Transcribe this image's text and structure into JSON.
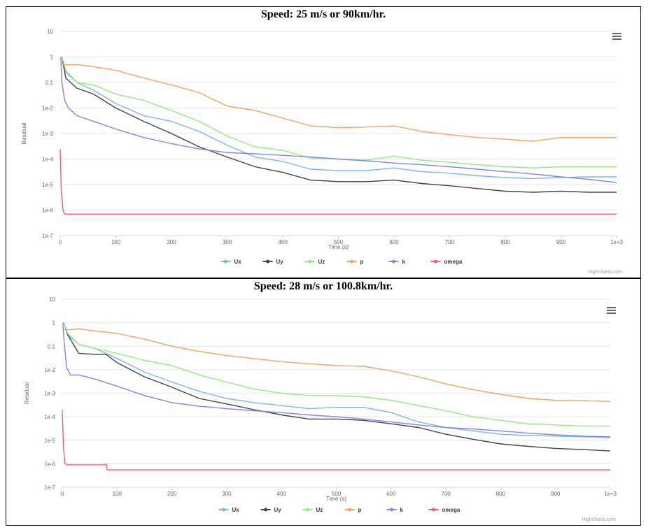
{
  "panels": [
    {
      "title": "Speed: 25 m/s or 90km/hr."
    },
    {
      "title": "Speed: 28 m/s or 100.8km/hr."
    }
  ],
  "credit": "Highcharts.com",
  "chart_data": [
    {
      "type": "line",
      "title": "Speed: 25 m/s or 90km/hr.",
      "xlabel": "Time (s)",
      "ylabel": "Residual",
      "xlim": [
        0,
        1000
      ],
      "ylim_log10": [
        -7,
        1
      ],
      "y_scale": "log",
      "x_ticks": [
        "0",
        "100",
        "200",
        "300",
        "400",
        "500",
        "600",
        "700",
        "800",
        "900",
        "1e+3"
      ],
      "y_ticks": [
        "10",
        "1",
        "0.1",
        "1e-2",
        "1e-3",
        "1e-4",
        "1e-5",
        "1e-6",
        "1e-7"
      ],
      "grid": true,
      "legend": "bottom-center",
      "series": [
        {
          "name": "Ux",
          "color": "#7cb5ec",
          "x": [
            3,
            10,
            30,
            60,
            100,
            150,
            200,
            250,
            300,
            350,
            400,
            450,
            500,
            550,
            600,
            650,
            700,
            750,
            800,
            850,
            900,
            950,
            1000
          ],
          "y": [
            1,
            0.25,
            0.1,
            0.05,
            0.015,
            0.005,
            0.003,
            0.0012,
            0.00035,
            0.00012,
            8e-05,
            4e-05,
            3.5e-05,
            3.5e-05,
            4.5e-05,
            3.2e-05,
            2.8e-05,
            2.2e-05,
            1.9e-05,
            1.7e-05,
            1.9e-05,
            2e-05,
            2e-05
          ]
        },
        {
          "name": "Uy",
          "color": "#434348",
          "x": [
            3,
            10,
            30,
            60,
            100,
            150,
            200,
            250,
            300,
            350,
            400,
            450,
            500,
            550,
            600,
            650,
            700,
            750,
            800,
            850,
            900,
            950,
            1000
          ],
          "y": [
            1,
            0.15,
            0.06,
            0.035,
            0.01,
            0.003,
            0.001,
            0.0003,
            0.00012,
            5e-05,
            3e-05,
            1.5e-05,
            1.3e-05,
            1.3e-05,
            1.5e-05,
            1.1e-05,
            9e-06,
            7e-06,
            5.5e-06,
            5e-06,
            5.5e-06,
            5e-06,
            5e-06
          ]
        },
        {
          "name": "Uz",
          "color": "#90ed7d",
          "x": [
            3,
            10,
            30,
            60,
            100,
            150,
            200,
            250,
            300,
            350,
            400,
            450,
            500,
            550,
            600,
            650,
            700,
            750,
            800,
            850,
            900,
            950,
            1000
          ],
          "y": [
            1,
            0.3,
            0.1,
            0.08,
            0.035,
            0.02,
            0.008,
            0.003,
            0.0008,
            0.0003,
            0.00022,
            0.00011,
            0.0001,
            9e-05,
            0.00013,
            9e-05,
            7.5e-05,
            6e-05,
            5e-05,
            4.5e-05,
            5e-05,
            5e-05,
            5e-05
          ]
        },
        {
          "name": "p",
          "color": "#f7a35c",
          "x": [
            3,
            10,
            30,
            60,
            100,
            150,
            200,
            250,
            300,
            350,
            400,
            450,
            500,
            550,
            600,
            650,
            700,
            750,
            800,
            850,
            900,
            950,
            1000
          ],
          "y": [
            0.5,
            0.5,
            0.5,
            0.42,
            0.3,
            0.15,
            0.08,
            0.04,
            0.012,
            0.008,
            0.004,
            0.002,
            0.0017,
            0.0018,
            0.002,
            0.0012,
            0.0009,
            0.0007,
            0.0006,
            0.0005,
            0.0007,
            0.0007,
            0.0007
          ]
        },
        {
          "name": "k",
          "color": "#8085e9",
          "x": [
            1,
            3,
            8,
            15,
            30,
            60,
            100,
            150,
            200,
            250,
            300,
            350,
            400,
            450,
            500,
            550,
            600,
            650,
            700,
            750,
            800,
            850,
            900,
            950,
            1000
          ],
          "y": [
            1,
            0.1,
            0.02,
            0.01,
            0.005,
            0.003,
            0.0015,
            0.0007,
            0.0004,
            0.00025,
            0.00018,
            0.00016,
            0.00014,
            0.00012,
            0.0001,
            8.5e-05,
            7e-05,
            6e-05,
            5e-05,
            4e-05,
            3.2e-05,
            2.6e-05,
            2e-05,
            1.6e-05,
            1.2e-05
          ]
        },
        {
          "name": "omega",
          "color": "#f15c80",
          "x": [
            0,
            2,
            5,
            8,
            10,
            50,
            100,
            200,
            300,
            400,
            500,
            600,
            700,
            800,
            900,
            1000
          ],
          "y": [
            0.00025,
            5e-06,
            1e-06,
            7e-07,
            7e-07,
            7e-07,
            7e-07,
            7e-07,
            7e-07,
            7e-07,
            7e-07,
            7e-07,
            7e-07,
            7e-07,
            7e-07,
            7e-07
          ]
        }
      ]
    },
    {
      "type": "line",
      "title": "Speed: 28 m/s or 100.8km/hr.",
      "xlabel": "Time (s)",
      "ylabel": "Residual",
      "xlim": [
        0,
        1000
      ],
      "ylim_log10": [
        -7,
        1
      ],
      "y_scale": "log",
      "x_ticks": [
        "0",
        "100",
        "200",
        "300",
        "400",
        "500",
        "600",
        "700",
        "800",
        "900",
        "1e+3"
      ],
      "y_ticks": [
        "10",
        "1",
        "0.1",
        "1e-2",
        "1e-3",
        "1e-4",
        "1e-5",
        "1e-6",
        "1e-7"
      ],
      "grid": true,
      "legend": "bottom-center",
      "series": [
        {
          "name": "Ux",
          "color": "#7cb5ec",
          "x": [
            3,
            10,
            30,
            60,
            100,
            150,
            200,
            250,
            300,
            350,
            400,
            450,
            500,
            550,
            600,
            650,
            700,
            750,
            800,
            850,
            900,
            950,
            1000
          ],
          "y": [
            1,
            0.3,
            0.12,
            0.08,
            0.03,
            0.008,
            0.003,
            0.0012,
            0.0006,
            0.0004,
            0.0003,
            0.00022,
            0.00025,
            0.00025,
            0.00015,
            6e-05,
            3.5e-05,
            2.5e-05,
            1.8e-05,
            1.6e-05,
            1.5e-05,
            1.4e-05,
            1.3e-05
          ]
        },
        {
          "name": "Uy",
          "color": "#434348",
          "x": [
            3,
            10,
            30,
            60,
            80,
            100,
            150,
            200,
            250,
            300,
            350,
            400,
            450,
            500,
            550,
            600,
            650,
            700,
            750,
            800,
            850,
            900,
            950,
            1000
          ],
          "y": [
            1,
            0.3,
            0.05,
            0.045,
            0.045,
            0.02,
            0.005,
            0.0018,
            0.0006,
            0.00035,
            0.0002,
            0.00012,
            8e-05,
            8e-05,
            7e-05,
            5e-05,
            3.5e-05,
            1.8e-05,
            1.1e-05,
            7e-06,
            5.5e-06,
            4.5e-06,
            4e-06,
            3.5e-06
          ]
        },
        {
          "name": "Uz",
          "color": "#90ed7d",
          "x": [
            3,
            10,
            30,
            60,
            100,
            150,
            200,
            250,
            300,
            350,
            400,
            450,
            500,
            550,
            600,
            650,
            700,
            750,
            800,
            850,
            900,
            950,
            1000
          ],
          "y": [
            1,
            0.35,
            0.12,
            0.08,
            0.05,
            0.025,
            0.015,
            0.006,
            0.003,
            0.0015,
            0.001,
            0.0008,
            0.0008,
            0.0007,
            0.0005,
            0.0003,
            0.00018,
            0.0001,
            7e-05,
            5e-05,
            4.5e-05,
            4e-05,
            4e-05
          ]
        },
        {
          "name": "p",
          "color": "#f7a35c",
          "x": [
            3,
            10,
            30,
            60,
            100,
            150,
            200,
            250,
            300,
            350,
            400,
            450,
            500,
            550,
            600,
            650,
            700,
            750,
            800,
            850,
            900,
            950,
            1000
          ],
          "y": [
            0.5,
            0.5,
            0.55,
            0.45,
            0.35,
            0.2,
            0.1,
            0.06,
            0.04,
            0.03,
            0.022,
            0.018,
            0.015,
            0.014,
            0.009,
            0.005,
            0.0025,
            0.0014,
            0.0009,
            0.0006,
            0.0005,
            0.00048,
            0.00045
          ]
        },
        {
          "name": "k",
          "color": "#8085e9",
          "x": [
            1,
            3,
            8,
            15,
            30,
            60,
            100,
            150,
            200,
            250,
            300,
            350,
            400,
            450,
            500,
            550,
            600,
            650,
            700,
            750,
            800,
            850,
            900,
            950,
            1000
          ],
          "y": [
            1,
            0.2,
            0.012,
            0.006,
            0.006,
            0.004,
            0.002,
            0.0008,
            0.0004,
            0.00028,
            0.00022,
            0.00018,
            0.00015,
            0.00012,
            0.0001,
            8e-05,
            6e-05,
            4.5e-05,
            3.5e-05,
            3e-05,
            2.5e-05,
            2e-05,
            1.7e-05,
            1.5e-05,
            1.4e-05
          ]
        },
        {
          "name": "omega",
          "color": "#f15c80",
          "x": [
            0,
            2,
            5,
            10,
            50,
            78,
            80,
            82,
            100,
            200,
            300,
            400,
            500,
            600,
            700,
            800,
            900,
            1000
          ],
          "y": [
            0.0002,
            5e-06,
            1e-06,
            9e-07,
            9e-07,
            9e-07,
            1e-06,
            5.5e-07,
            5.5e-07,
            5.5e-07,
            5.5e-07,
            5.5e-07,
            5.5e-07,
            5.5e-07,
            5.5e-07,
            5.5e-07,
            5.5e-07,
            5.5e-07
          ]
        }
      ]
    }
  ]
}
